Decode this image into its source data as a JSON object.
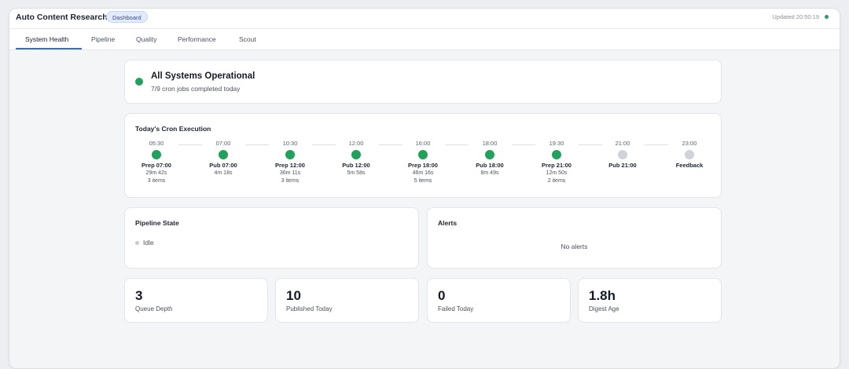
{
  "header": {
    "title": "Auto Content Research",
    "badge": "Dashboard",
    "updated": "Updated 20:50:19"
  },
  "tabs": [
    {
      "label": "System Health",
      "active": true
    },
    {
      "label": "Pipeline"
    },
    {
      "label": "Quality"
    },
    {
      "label": "Performance"
    },
    {
      "label": "Scout"
    }
  ],
  "status": {
    "title": "All Systems Operational",
    "subtitle": "7/9 cron jobs completed today"
  },
  "cron": {
    "title": "Today's Cron Execution",
    "jobs": [
      {
        "time": "05:30",
        "name": "Prep 07:00",
        "duration": "29m 42s",
        "items": "3 items",
        "state": "done"
      },
      {
        "time": "07:00",
        "name": "Pub 07:00",
        "duration": "4m 18s",
        "items": "",
        "state": "done"
      },
      {
        "time": "10:30",
        "name": "Prep 12:00",
        "duration": "36m 11s",
        "items": "3 items",
        "state": "done"
      },
      {
        "time": "12:00",
        "name": "Pub 12:00",
        "duration": "5m 58s",
        "items": "",
        "state": "done"
      },
      {
        "time": "16:00",
        "name": "Prep 18:00",
        "duration": "46m 16s",
        "items": "5 items",
        "state": "done"
      },
      {
        "time": "18:00",
        "name": "Pub 18:00",
        "duration": "8m 49s",
        "items": "",
        "state": "done"
      },
      {
        "time": "19:30",
        "name": "Prep 21:00",
        "duration": "12m 50s",
        "items": "2 items",
        "state": "done"
      },
      {
        "time": "21:00",
        "name": "Pub 21:00",
        "duration": "",
        "items": "",
        "state": "pending"
      },
      {
        "time": "23:00",
        "name": "Feedback",
        "duration": "",
        "items": "",
        "state": "pending"
      }
    ]
  },
  "pipeline": {
    "title": "Pipeline State",
    "state": "Idle"
  },
  "alerts": {
    "title": "Alerts",
    "empty": "No alerts"
  },
  "stats": [
    {
      "value": "3",
      "label": "Queue Depth"
    },
    {
      "value": "10",
      "label": "Published Today"
    },
    {
      "value": "0",
      "label": "Failed Today"
    },
    {
      "value": "1.8h",
      "label": "Digest Age"
    }
  ],
  "colors": {
    "success": "#22a15c",
    "pending": "#cfd3da",
    "accent": "#2f6fd0"
  }
}
